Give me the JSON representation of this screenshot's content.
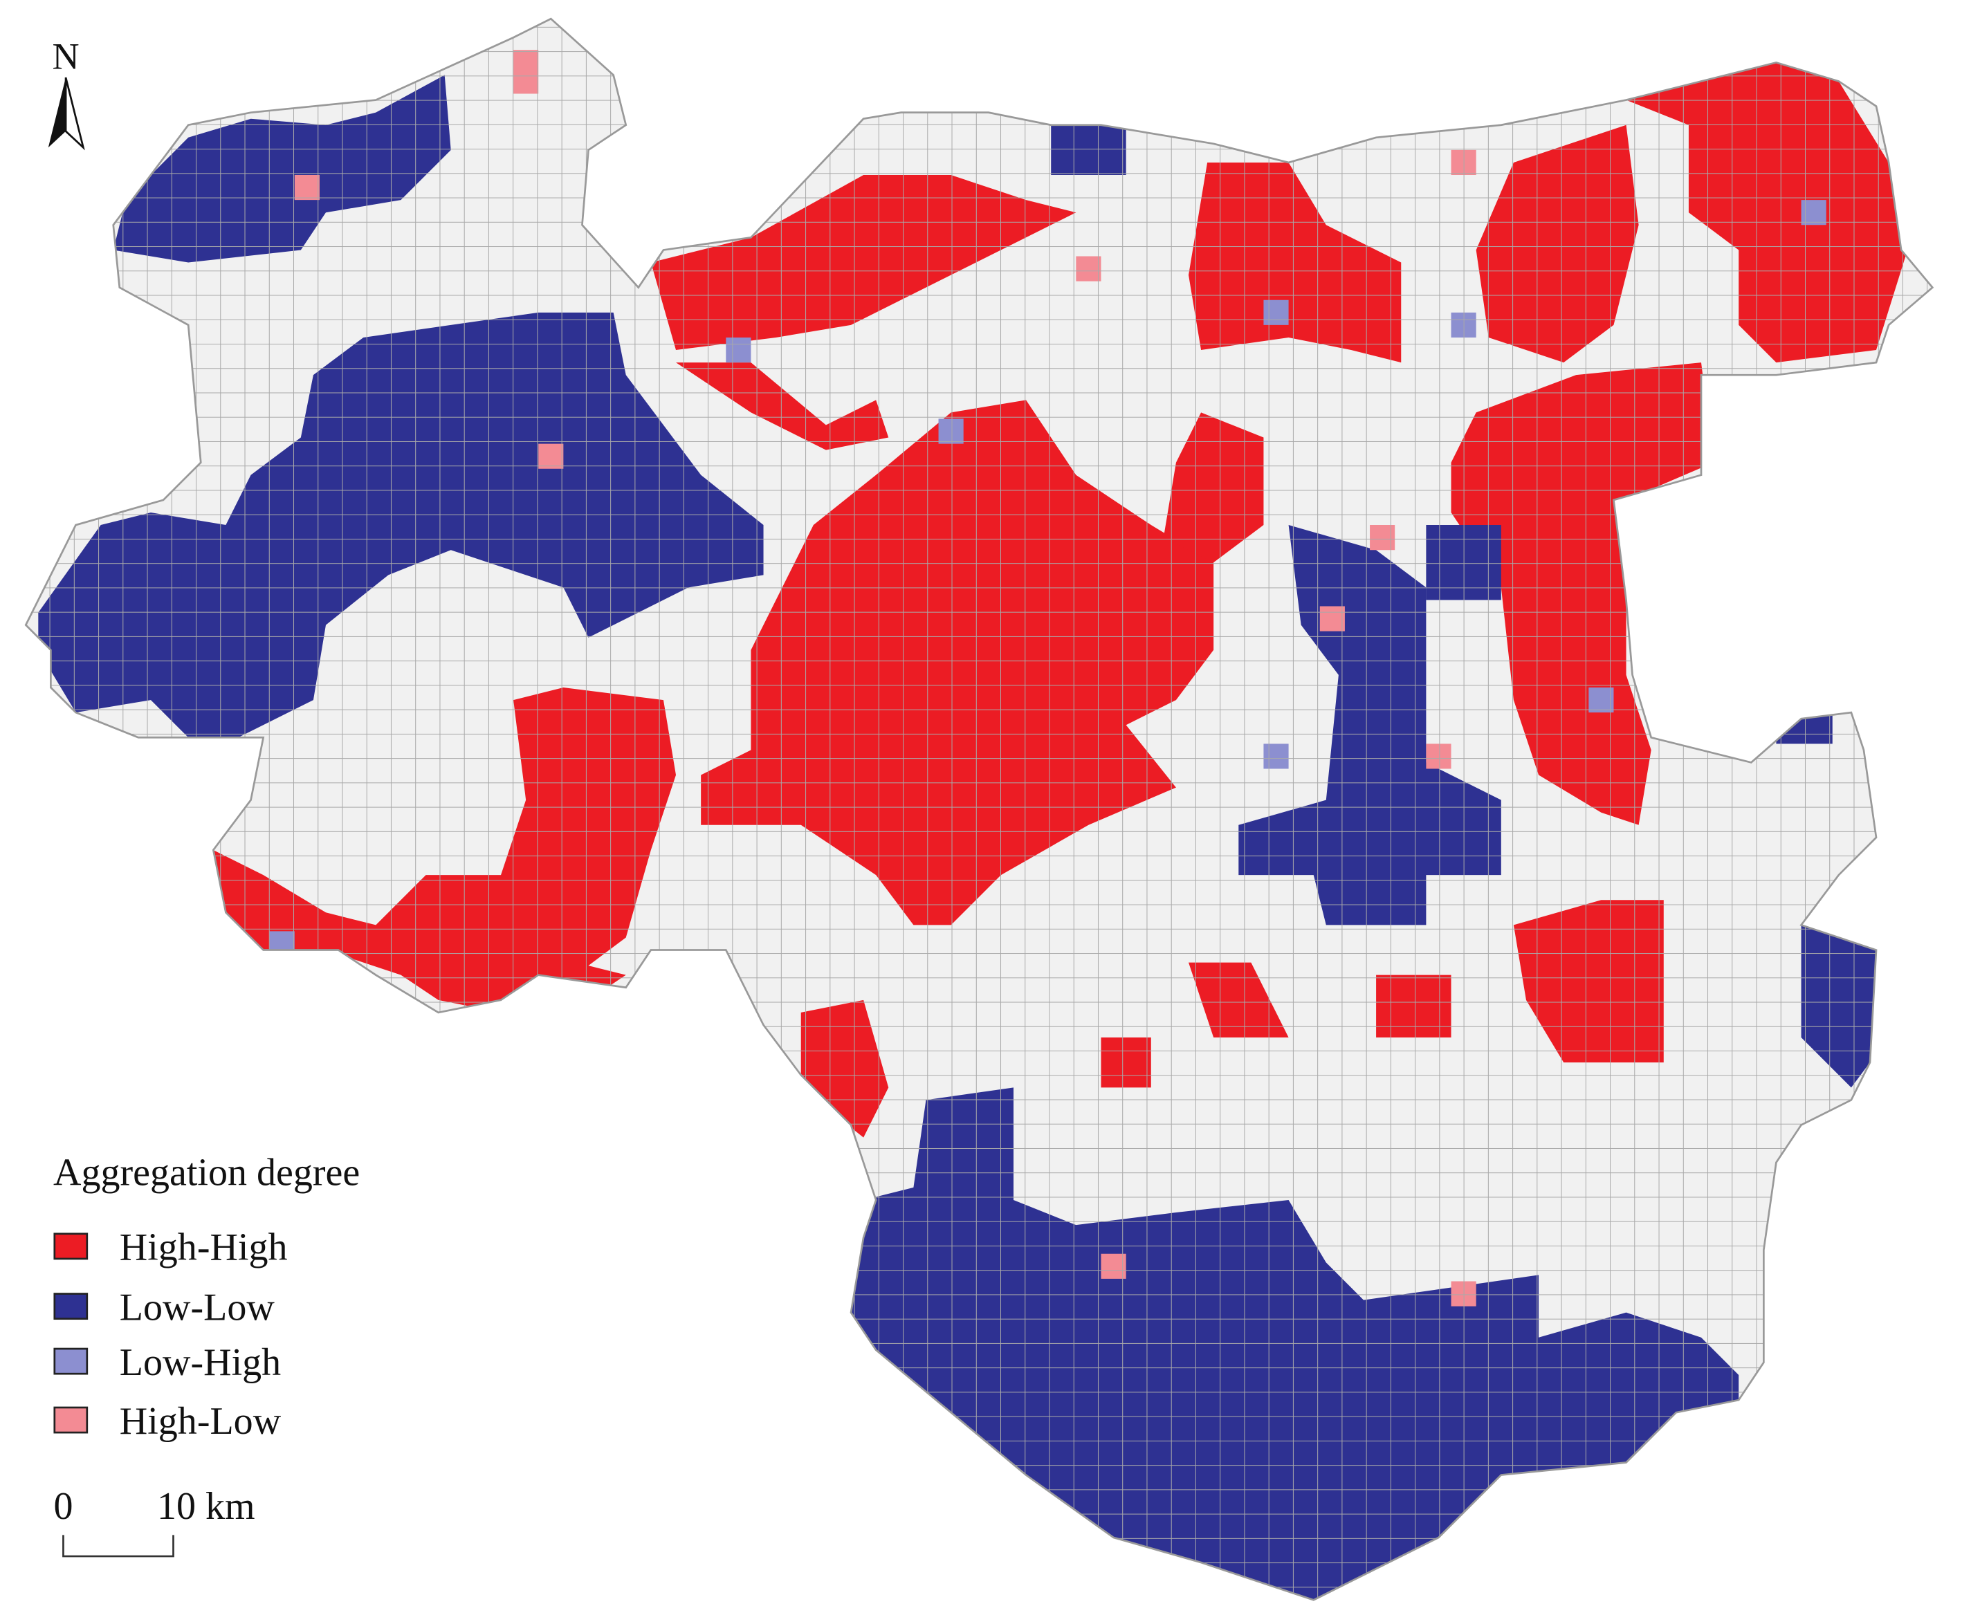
{
  "map": {
    "north_label": "N",
    "legend": {
      "title": "Aggregation degree",
      "items": [
        {
          "label": "High-High",
          "color": "#ec1c24"
        },
        {
          "label": "Low-Low",
          "color": "#2e3192"
        },
        {
          "label": "Low-High",
          "color": "#8c8fd0"
        },
        {
          "label": "High-Low",
          "color": "#f38b94"
        }
      ]
    },
    "scale_bar": {
      "start_label": "0",
      "end_label": "10 km"
    }
  }
}
